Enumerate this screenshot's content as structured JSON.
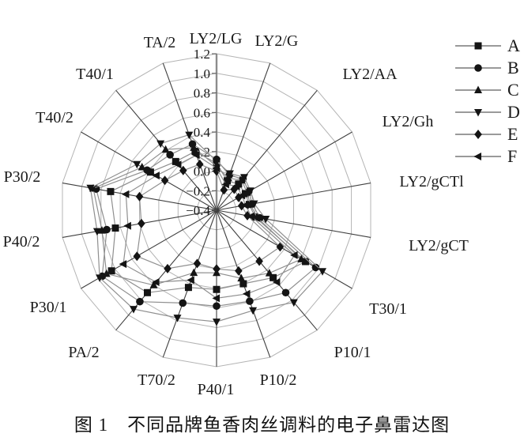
{
  "figure": {
    "caption": "图 1　不同品牌鱼香肉丝调料的电子鼻雷达图"
  },
  "chart_data": {
    "type": "radar",
    "title": "",
    "categories": [
      "LY2/LG",
      "LY2/G",
      "LY2/AA",
      "LY2/Gh",
      "LY2/gCTl",
      "LY2/gCT",
      "T30/1",
      "P10/1",
      "P10/2",
      "P40/1",
      "T70/2",
      "PA/2",
      "P30/1",
      "P40/2",
      "P30/2",
      "T40/2",
      "T40/1",
      "TA/2"
    ],
    "radial_axis": {
      "min": -0.4,
      "max": 1.2,
      "tick_interval": 0.2,
      "tick_labels": [
        "1.2",
        "1.0",
        "0.8",
        "0.6",
        "0.4",
        "0.2",
        "0.0",
        "−0.2",
        "−0.4"
      ],
      "tick_values": [
        1.2,
        1.0,
        0.8,
        0.6,
        0.4,
        0.2,
        0.0,
        -0.2,
        -0.4
      ]
    },
    "grid": "polygon-rings-on",
    "legend_position": "top-right",
    "series": [
      {
        "name": "A",
        "marker": "square",
        "values": [
          0.08,
          -0.08,
          -0.05,
          -0.06,
          -0.06,
          0.0,
          0.65,
          0.5,
          0.4,
          0.41,
          0.44,
          0.7,
          0.84,
          0.65,
          0.7,
          0.38,
          0.25,
          0.24
        ]
      },
      {
        "name": "B",
        "marker": "circle",
        "values": [
          0.12,
          -0.02,
          0.02,
          -0.02,
          -0.03,
          0.05,
          0.77,
          0.7,
          0.59,
          0.58,
          0.61,
          0.82,
          0.95,
          0.74,
          0.85,
          0.42,
          0.34,
          0.32
        ]
      },
      {
        "name": "C",
        "marker": "triangle-up",
        "values": [
          0.05,
          -0.05,
          0.0,
          -0.04,
          -0.05,
          0.02,
          0.6,
          0.44,
          0.34,
          0.24,
          0.28,
          0.6,
          0.9,
          0.79,
          0.88,
          0.48,
          0.41,
          0.28
        ]
      },
      {
        "name": "D",
        "marker": "triangle-down",
        "values": [
          0.1,
          0.0,
          0.04,
          0.0,
          -0.01,
          0.11,
          0.85,
          0.83,
          0.69,
          0.74,
          0.77,
          0.92,
          0.98,
          0.84,
          0.91,
          0.54,
          0.49,
          0.42
        ]
      },
      {
        "name": "E",
        "marker": "diamond",
        "values": [
          0.0,
          -0.18,
          -0.12,
          -0.14,
          -0.14,
          -0.08,
          0.35,
          0.28,
          0.26,
          0.2,
          0.18,
          0.38,
          0.54,
          0.38,
          0.4,
          0.21,
          0.13,
          0.1
        ]
      },
      {
        "name": "F",
        "marker": "triangle-left",
        "values": [
          0.03,
          -0.12,
          -0.08,
          -0.1,
          -0.1,
          -0.04,
          0.52,
          0.56,
          0.51,
          0.5,
          0.36,
          0.56,
          0.7,
          0.52,
          0.54,
          0.31,
          0.21,
          0.2
        ]
      }
    ],
    "colors": {
      "series_line": "#8f8f8f",
      "marker": "#141414",
      "grid_ring": "#b4b4b4",
      "spoke": "#3f3f3f",
      "scale_axis": "#8c8c8c",
      "text": "#1a1a1a"
    }
  }
}
